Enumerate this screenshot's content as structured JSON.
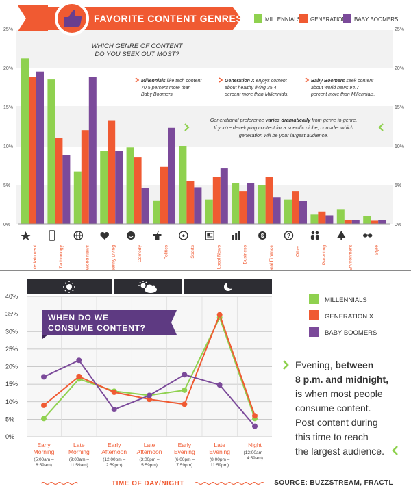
{
  "colors": {
    "millennials": "#8fd14f",
    "generation_x": "#f05a32",
    "baby_boomers": "#7b4a9a",
    "orange": "#f05a32",
    "purple": "#5e3a82",
    "dark": "#2d2d33"
  },
  "top": {
    "title": "FAVORITE CONTENT GENRES",
    "question": [
      "WHICH GENRE OF CONTENT",
      "DO YOU SEEK OUT MOST?"
    ],
    "legend": [
      "MILLENNIALS",
      "GENERATION X",
      "BABY BOOMERS"
    ],
    "notes": [
      {
        "strong": "Millennials",
        "rest": "like tech content",
        "line2": "70.5 percent more than",
        "line3": "Baby Boomers."
      },
      {
        "strong": "Generation X",
        "rest": "enjoys content",
        "line2": "about healthy living 35.4",
        "line3": "percent more than Millennials."
      },
      {
        "strong": "Baby Boomers",
        "rest": "seek content",
        "line2": "about world news 94.7",
        "line3": "percent more than Millennials."
      }
    ],
    "insight": {
      "a": "Generational preference ",
      "strong": "varies dramatically",
      "b": " from genre to genre.",
      "line2": "If you're developing content for a specific niche, consider which",
      "line3": "generation will be your largest audience."
    }
  },
  "bottom": {
    "banner": [
      "WHEN DO WE",
      "CONSUME CONTENT?"
    ],
    "legend": [
      "MILLENNIALS",
      "GENERATION X",
      "BABY BOOMERS"
    ],
    "note": {
      "line1": "Evening, ",
      "strong1": "between",
      "strong2": "8 p.m. and midnight,",
      "line3": "is when most people",
      "line4": "consume content.",
      "line5": "Post content during",
      "line6": "this time to reach",
      "line7": "the largest audience."
    },
    "xtitle": "TIME OF DAY/NIGHT",
    "source": "SOURCE: BUZZSTREAM, FRACTL"
  },
  "chart_data": [
    {
      "type": "bar",
      "title": "FAVORITE CONTENT GENRES",
      "categories": [
        "Entertainment",
        "Technology",
        "World News",
        "Healthy Living",
        "Comedy",
        "Politics",
        "Sports",
        "Local News",
        "Business",
        "Personal Finance",
        "Other",
        "Parenting",
        "Environment",
        "Style"
      ],
      "icons": [
        "star-icon",
        "phone-icon",
        "globe-icon",
        "heart-icon",
        "smile-icon",
        "podium-icon",
        "ball-icon",
        "newspaper-icon",
        "chart-icon",
        "money-icon",
        "question-icon",
        "family-icon",
        "tree-icon",
        "sunglasses-icon"
      ],
      "series": [
        {
          "name": "MILLENNIALS",
          "values": [
            21.2,
            18.5,
            6.7,
            9.3,
            9.8,
            3.0,
            10.0,
            3.1,
            5.2,
            5.0,
            3.1,
            1.2,
            1.9,
            1.0
          ]
        },
        {
          "name": "GENERATION X",
          "values": [
            18.8,
            11.0,
            12.0,
            13.2,
            8.5,
            7.3,
            5.5,
            6.0,
            4.2,
            6.0,
            4.2,
            1.6,
            0.5,
            0.4
          ]
        },
        {
          "name": "BABY BOOMERS",
          "values": [
            19.5,
            8.8,
            18.8,
            9.3,
            4.6,
            12.3,
            4.7,
            7.1,
            5.2,
            3.4,
            2.9,
            1.1,
            0.5,
            0.5
          ]
        }
      ],
      "yticks": [
        "0%",
        "5%",
        "10%",
        "15%",
        "20%",
        "25%"
      ],
      "ylim": [
        0,
        25
      ],
      "grid": false,
      "legend_position": "top-right"
    },
    {
      "type": "line",
      "title": "WHEN DO WE CONSUME CONTENT?",
      "xlabel": "TIME OF DAY/NIGHT",
      "categories": [
        {
          "name": [
            "Early",
            "Morning"
          ],
          "time": [
            "(5:00am –",
            "8:59am)"
          ]
        },
        {
          "name": [
            "Late",
            "Morning"
          ],
          "time": [
            "(9:00am –",
            "11:59am)"
          ]
        },
        {
          "name": [
            "Early",
            "Afternoon"
          ],
          "time": [
            "(12:00pm –",
            "2:59pm)"
          ]
        },
        {
          "name": [
            "Late",
            "Afternoon"
          ],
          "time": [
            "(3:00pm –",
            "5:59pm)"
          ]
        },
        {
          "name": [
            "Early",
            "Evening"
          ],
          "time": [
            "(6:00pm –",
            "7:59pm)"
          ]
        },
        {
          "name": [
            "Late",
            "Evening"
          ],
          "time": [
            "(8:00pm –",
            "11:59pm)"
          ]
        },
        {
          "name": [
            "Night"
          ],
          "time": [
            "(12:00am –",
            "4:59am)"
          ]
        }
      ],
      "series": [
        {
          "name": "MILLENNIALS",
          "values": [
            5.2,
            16.5,
            13.0,
            11.8,
            13.3,
            34.0,
            5.2
          ]
        },
        {
          "name": "GENERATION X",
          "values": [
            9.0,
            17.2,
            12.7,
            10.7,
            9.3,
            34.8,
            6.0
          ]
        },
        {
          "name": "BABY BOOMERS",
          "values": [
            17.1,
            21.8,
            7.8,
            11.8,
            17.7,
            14.8,
            3.0
          ]
        }
      ],
      "yticks": [
        "0%",
        "5%",
        "10%",
        "15%",
        "20%",
        "25%",
        "30%",
        "35%",
        "40%"
      ],
      "ylim": [
        0,
        40
      ],
      "grid": true,
      "legend_position": "right"
    }
  ]
}
